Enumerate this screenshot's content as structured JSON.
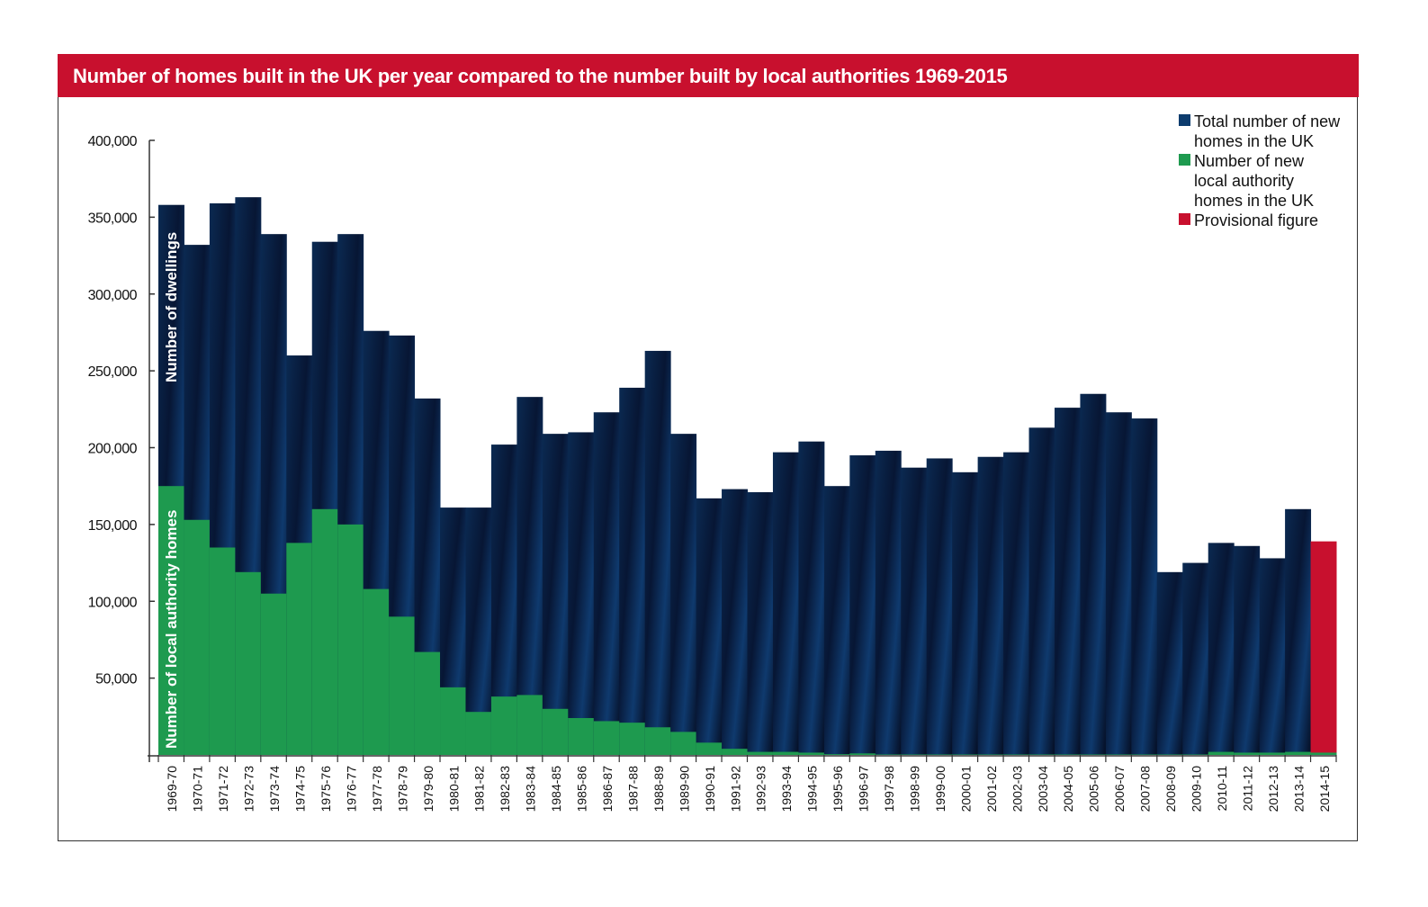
{
  "chart_data": {
    "type": "bar",
    "title": "Number of homes built in the UK per year compared to the number built by local authorities 1969-2015",
    "ylabel_total": "Number of dwellings",
    "ylabel_la": "Number of local authority homes",
    "ylim": [
      0,
      400000
    ],
    "yticks": [
      50000,
      100000,
      150000,
      200000,
      250000,
      300000,
      350000,
      400000
    ],
    "ytick_labels": [
      "50,000",
      "100,000",
      "150,000",
      "200,000",
      "250,000",
      "300,000",
      "350,000",
      "400,000"
    ],
    "legend_position": "top-right",
    "categories": [
      "1969-70",
      "1970-71",
      "1971-72",
      "1972-73",
      "1973-74",
      "1974-75",
      "1975-76",
      "1976-77",
      "1977-78",
      "1978-79",
      "1979-80",
      "1980-81",
      "1981-82",
      "1982-83",
      "1983-84",
      "1984-85",
      "1985-86",
      "1986-87",
      "1987-88",
      "1988-89",
      "1989-90",
      "1990-91",
      "1991-92",
      "1992-93",
      "1993-94",
      "1994-95",
      "1995-96",
      "1996-97",
      "1997-98",
      "1998-99",
      "1999-00",
      "2000-01",
      "2001-02",
      "2002-03",
      "2003-04",
      "2004-05",
      "2005-06",
      "2006-07",
      "2007-08",
      "2008-09",
      "2009-10",
      "2010-11",
      "2011-12",
      "2012-13",
      "2013-14",
      "2014-15"
    ],
    "series": [
      {
        "name": "Total number of new homes in the UK",
        "color": "#0d3c6e",
        "values": [
          358000,
          332000,
          359000,
          363000,
          339000,
          260000,
          334000,
          339000,
          276000,
          273000,
          232000,
          161000,
          161000,
          202000,
          233000,
          209000,
          210000,
          223000,
          239000,
          263000,
          209000,
          167000,
          173000,
          171000,
          197000,
          204000,
          175000,
          195000,
          198000,
          187000,
          193000,
          184000,
          194000,
          197000,
          213000,
          226000,
          235000,
          223000,
          219000,
          119000,
          125000,
          138000,
          136000,
          128000,
          160000,
          139000
        ]
      },
      {
        "name": "Number of new local authority homes in the UK",
        "color": "#1e9a4f",
        "values": [
          175000,
          153000,
          135000,
          119000,
          105000,
          138000,
          160000,
          150000,
          108000,
          90000,
          67000,
          44000,
          28000,
          38000,
          39000,
          30000,
          24000,
          22000,
          21000,
          18000,
          15000,
          8000,
          4000,
          2000,
          2000,
          1500,
          500,
          1000,
          300,
          300,
          300,
          300,
          300,
          300,
          300,
          300,
          300,
          300,
          300,
          300,
          300,
          2000,
          1500,
          1500,
          2000,
          1500
        ]
      }
    ],
    "provisional": {
      "name": "Provisional figure",
      "color": "#c8102e",
      "category": "2014-15"
    }
  }
}
